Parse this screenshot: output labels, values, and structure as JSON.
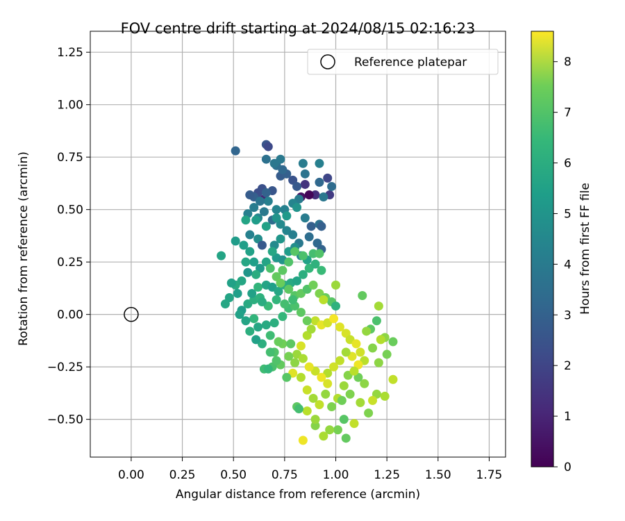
{
  "chart_data": {
    "type": "scatter",
    "title": "FOV centre drift starting at 2024/08/15 02:16:23",
    "xlabel": "Angular distance from reference (arcmin)",
    "ylabel": "Rotation from reference (arcmin)",
    "xlim": [
      -0.2,
      1.83
    ],
    "ylim": [
      -0.68,
      1.35
    ],
    "xticks": [
      "0.00",
      "0.25",
      "0.50",
      "0.75",
      "1.00",
      "1.25",
      "1.50",
      "1.75"
    ],
    "yticks": [
      "−0.50",
      "−0.25",
      "0.00",
      "0.25",
      "0.50",
      "0.75",
      "1.00",
      "1.25"
    ],
    "grid": true,
    "legend": {
      "placement": "top-right",
      "entries": [
        "Reference platepar"
      ]
    },
    "reference_point": {
      "x": 0.0,
      "y": 0.0
    },
    "colorbar": {
      "label": "Hours from first FF file",
      "range": [
        0,
        8.6
      ],
      "ticks": [
        "0",
        "1",
        "2",
        "3",
        "4",
        "5",
        "6",
        "7",
        "8"
      ],
      "colormap": "viridis"
    },
    "points": [
      [
        0.66,
        0.81,
        2.3
      ],
      [
        0.67,
        0.8,
        1.9
      ],
      [
        0.51,
        0.78,
        2.8
      ],
      [
        0.65,
        0.55,
        0.8
      ],
      [
        0.83,
        0.56,
        0.4
      ],
      [
        0.85,
        0.62,
        1.3
      ],
      [
        0.96,
        0.65,
        1.8
      ],
      [
        0.9,
        0.57,
        1.1
      ],
      [
        0.97,
        0.57,
        1.5
      ],
      [
        0.87,
        0.57,
        0.1
      ],
      [
        0.62,
        0.58,
        2.0
      ],
      [
        0.64,
        0.6,
        2.1
      ],
      [
        0.73,
        0.66,
        2.5
      ],
      [
        0.76,
        0.67,
        2.6
      ],
      [
        0.79,
        0.64,
        2.2
      ],
      [
        0.81,
        0.61,
        2.4
      ],
      [
        0.69,
        0.59,
        2.3
      ],
      [
        0.6,
        0.56,
        2.6
      ],
      [
        0.58,
        0.57,
        2.5
      ],
      [
        0.66,
        0.58,
        2.7
      ],
      [
        0.74,
        0.69,
        2.9
      ],
      [
        0.71,
        0.71,
        3.1
      ],
      [
        0.73,
        0.74,
        3.5
      ],
      [
        0.66,
        0.74,
        3.2
      ],
      [
        0.7,
        0.72,
        3.4
      ],
      [
        0.84,
        0.72,
        3.6
      ],
      [
        0.92,
        0.72,
        3.7
      ],
      [
        0.85,
        0.67,
        3.3
      ],
      [
        0.92,
        0.63,
        2.9
      ],
      [
        0.98,
        0.61,
        3.0
      ],
      [
        0.94,
        0.56,
        3.4
      ],
      [
        0.82,
        0.55,
        3.6
      ],
      [
        0.79,
        0.53,
        3.9
      ],
      [
        0.75,
        0.5,
        3.8
      ],
      [
        0.71,
        0.5,
        3.9
      ],
      [
        0.67,
        0.54,
        3.7
      ],
      [
        0.63,
        0.54,
        3.3
      ],
      [
        0.6,
        0.51,
        3.6
      ],
      [
        0.57,
        0.48,
        3.7
      ],
      [
        0.62,
        0.46,
        3.9
      ],
      [
        0.65,
        0.49,
        3.5
      ],
      [
        0.69,
        0.45,
        3.0
      ],
      [
        0.73,
        0.43,
        4.1
      ],
      [
        0.76,
        0.4,
        3.9
      ],
      [
        0.79,
        0.38,
        3.7
      ],
      [
        0.82,
        0.34,
        3.5
      ],
      [
        0.87,
        0.37,
        3.1
      ],
      [
        0.91,
        0.34,
        2.9
      ],
      [
        0.93,
        0.31,
        2.7
      ],
      [
        0.88,
        0.42,
        2.6
      ],
      [
        0.92,
        0.43,
        3.2
      ],
      [
        0.93,
        0.42,
        2.6
      ],
      [
        0.85,
        0.46,
        3.6
      ],
      [
        0.81,
        0.51,
        4.4
      ],
      [
        0.76,
        0.47,
        4.6
      ],
      [
        0.71,
        0.46,
        4.4
      ],
      [
        0.66,
        0.42,
        4.9
      ],
      [
        0.61,
        0.45,
        4.7
      ],
      [
        0.56,
        0.45,
        5.0
      ],
      [
        0.58,
        0.38,
        3.8
      ],
      [
        0.62,
        0.36,
        4.2
      ],
      [
        0.64,
        0.33,
        2.4
      ],
      [
        0.7,
        0.33,
        4.1
      ],
      [
        0.71,
        0.27,
        4.6
      ],
      [
        0.74,
        0.26,
        4.4
      ],
      [
        0.77,
        0.3,
        4.7
      ],
      [
        0.8,
        0.32,
        4.2
      ],
      [
        0.83,
        0.28,
        4.1
      ],
      [
        0.86,
        0.26,
        4.9
      ],
      [
        0.73,
        0.36,
        4.5
      ],
      [
        0.69,
        0.3,
        5.1
      ],
      [
        0.66,
        0.25,
        5.0
      ],
      [
        0.63,
        0.22,
        4.6
      ],
      [
        0.6,
        0.25,
        4.8
      ],
      [
        0.56,
        0.25,
        5.1
      ],
      [
        0.51,
        0.35,
        4.7
      ],
      [
        0.44,
        0.28,
        5.0
      ],
      [
        0.55,
        0.33,
        4.8
      ],
      [
        0.58,
        0.3,
        4.9
      ],
      [
        0.61,
        0.19,
        5.3
      ],
      [
        0.57,
        0.2,
        4.5
      ],
      [
        0.54,
        0.16,
        5.1
      ],
      [
        0.51,
        0.14,
        5.2
      ],
      [
        0.49,
        0.15,
        4.9
      ],
      [
        0.52,
        0.1,
        4.8
      ],
      [
        0.48,
        0.08,
        5.0
      ],
      [
        0.46,
        0.05,
        5.1
      ],
      [
        0.54,
        0.02,
        4.7
      ],
      [
        0.57,
        0.05,
        5.2
      ],
      [
        0.6,
        0.07,
        5.4
      ],
      [
        0.63,
        0.08,
        5.5
      ],
      [
        0.59,
        0.1,
        4.9
      ],
      [
        0.62,
        0.13,
        5.6
      ],
      [
        0.66,
        0.14,
        5.0
      ],
      [
        0.69,
        0.13,
        4.8
      ],
      [
        0.72,
        0.11,
        5.1
      ],
      [
        0.75,
        0.14,
        5.3
      ],
      [
        0.78,
        0.15,
        5.2
      ],
      [
        0.81,
        0.16,
        5.0
      ],
      [
        0.84,
        0.19,
        5.4
      ],
      [
        0.87,
        0.22,
        5.7
      ],
      [
        0.9,
        0.24,
        5.5
      ],
      [
        0.93,
        0.21,
        5.8
      ],
      [
        0.89,
        0.29,
        6.0
      ],
      [
        0.92,
        0.29,
        6.2
      ],
      [
        0.84,
        0.28,
        6.1
      ],
      [
        0.8,
        0.3,
        6.3
      ],
      [
        0.77,
        0.25,
        6.2
      ],
      [
        0.74,
        0.21,
        6.4
      ],
      [
        0.71,
        0.18,
        6.5
      ],
      [
        0.68,
        0.22,
        6.1
      ],
      [
        0.73,
        0.15,
        6.6
      ],
      [
        0.77,
        0.12,
        6.4
      ],
      [
        0.8,
        0.09,
        6.3
      ],
      [
        0.83,
        0.1,
        6.5
      ],
      [
        0.86,
        0.12,
        6.2
      ],
      [
        0.89,
        0.14,
        6.7
      ],
      [
        0.92,
        0.1,
        6.9
      ],
      [
        0.95,
        0.08,
        6.6
      ],
      [
        0.98,
        0.06,
        6.3
      ],
      [
        1.0,
        0.14,
        7.3
      ],
      [
        0.94,
        0.07,
        7.7
      ],
      [
        1.0,
        0.04,
        5.5
      ],
      [
        1.13,
        0.09,
        6.5
      ],
      [
        1.21,
        0.04,
        7.4
      ],
      [
        1.2,
        -0.03,
        6.1
      ],
      [
        1.17,
        -0.07,
        6.4
      ],
      [
        1.15,
        -0.08,
        7.2
      ],
      [
        1.24,
        -0.11,
        7.1
      ],
      [
        1.28,
        -0.13,
        6.6
      ],
      [
        1.22,
        -0.12,
        7.6
      ],
      [
        1.18,
        -0.16,
        7.0
      ],
      [
        1.25,
        -0.19,
        6.8
      ],
      [
        1.21,
        -0.23,
        7.1
      ],
      [
        1.28,
        -0.31,
        7.8
      ],
      [
        1.2,
        -0.38,
        7.2
      ],
      [
        1.24,
        -0.39,
        7.5
      ],
      [
        1.18,
        -0.41,
        7.9
      ],
      [
        1.16,
        -0.47,
        6.9
      ],
      [
        1.12,
        -0.42,
        7.4
      ],
      [
        1.09,
        -0.52,
        7.8
      ],
      [
        1.14,
        -0.33,
        7.1
      ],
      [
        1.11,
        -0.3,
        6.7
      ],
      [
        1.07,
        -0.38,
        6.9
      ],
      [
        1.04,
        -0.5,
        6.3
      ],
      [
        1.05,
        -0.59,
        6.5
      ],
      [
        1.01,
        -0.55,
        6.8
      ],
      [
        0.97,
        -0.55,
        7.2
      ],
      [
        0.94,
        -0.58,
        7.5
      ],
      [
        0.9,
        -0.53,
        7.0
      ],
      [
        0.9,
        -0.5,
        7.3
      ],
      [
        0.84,
        -0.6,
        8.4
      ],
      [
        0.86,
        -0.46,
        7.7
      ],
      [
        0.81,
        -0.44,
        6.4
      ],
      [
        0.82,
        -0.45,
        6.0
      ],
      [
        0.86,
        -0.36,
        7.9
      ],
      [
        0.83,
        -0.3,
        7.6
      ],
      [
        0.79,
        -0.28,
        8.2
      ],
      [
        0.76,
        -0.3,
        6.3
      ],
      [
        0.73,
        -0.24,
        6.5
      ],
      [
        0.69,
        -0.25,
        6.1
      ],
      [
        0.65,
        -0.26,
        5.9
      ],
      [
        0.7,
        -0.18,
        6.2
      ],
      [
        0.74,
        -0.14,
        6.7
      ],
      [
        0.78,
        -0.14,
        6.4
      ],
      [
        0.81,
        -0.19,
        7.3
      ],
      [
        0.83,
        -0.15,
        8.1
      ],
      [
        0.86,
        -0.1,
        7.6
      ],
      [
        0.88,
        -0.07,
        7.4
      ],
      [
        0.9,
        -0.03,
        7.8
      ],
      [
        0.93,
        -0.05,
        8.3
      ],
      [
        0.96,
        -0.04,
        8.0
      ],
      [
        0.99,
        -0.02,
        8.5
      ],
      [
        1.02,
        -0.06,
        8.2
      ],
      [
        1.05,
        -0.09,
        8.1
      ],
      [
        1.07,
        -0.12,
        7.9
      ],
      [
        1.1,
        -0.14,
        8.3
      ],
      [
        1.12,
        -0.18,
        8.0
      ],
      [
        1.14,
        -0.22,
        7.7
      ],
      [
        1.11,
        -0.24,
        8.4
      ],
      [
        1.08,
        -0.2,
        8.2
      ],
      [
        1.05,
        -0.18,
        7.4
      ],
      [
        1.02,
        -0.22,
        7.8
      ],
      [
        0.99,
        -0.25,
        8.0
      ],
      [
        0.96,
        -0.28,
        7.6
      ],
      [
        0.93,
        -0.3,
        8.4
      ],
      [
        0.9,
        -0.27,
        7.9
      ],
      [
        0.87,
        -0.25,
        8.3
      ],
      [
        0.84,
        -0.21,
        7.5
      ],
      [
        0.8,
        -0.23,
        7.1
      ],
      [
        0.77,
        -0.2,
        6.8
      ],
      [
        0.72,
        -0.13,
        6.6
      ],
      [
        0.68,
        -0.1,
        5.9
      ],
      [
        0.66,
        -0.05,
        5.2
      ],
      [
        0.7,
        -0.04,
        5.4
      ],
      [
        0.74,
        -0.01,
        5.7
      ],
      [
        0.77,
        0.03,
        5.9
      ],
      [
        0.8,
        0.04,
        6.1
      ],
      [
        0.83,
        0.01,
        6.4
      ],
      [
        0.86,
        -0.03,
        6.6
      ],
      [
        0.95,
        -0.38,
        7.2
      ],
      [
        0.98,
        -0.44,
        6.9
      ],
      [
        1.01,
        -0.4,
        7.6
      ],
      [
        1.04,
        -0.34,
        7.3
      ],
      [
        1.06,
        -0.29,
        7.0
      ],
      [
        1.09,
        -0.27,
        7.7
      ],
      [
        0.92,
        -0.43,
        7.8
      ],
      [
        0.89,
        -0.4,
        7.4
      ],
      [
        0.96,
        -0.33,
        8.1
      ],
      [
        1.03,
        -0.41,
        6.7
      ],
      [
        0.62,
        -0.06,
        5.1
      ],
      [
        0.58,
        -0.08,
        5.4
      ],
      [
        0.6,
        -0.02,
        5.6
      ],
      [
        0.56,
        -0.03,
        5.0
      ],
      [
        0.53,
        0.0,
        4.9
      ],
      [
        0.67,
        0.04,
        5.8
      ],
      [
        0.64,
        0.06,
        5.3
      ],
      [
        0.71,
        0.07,
        5.6
      ],
      [
        0.75,
        0.05,
        6.0
      ],
      [
        0.79,
        0.07,
        5.9
      ],
      [
        0.64,
        -0.14,
        5.4
      ],
      [
        0.68,
        -0.18,
        6.0
      ],
      [
        0.71,
        -0.22,
        6.2
      ],
      [
        0.67,
        -0.26,
        5.7
      ],
      [
        0.61,
        -0.12,
        4.9
      ]
    ]
  }
}
